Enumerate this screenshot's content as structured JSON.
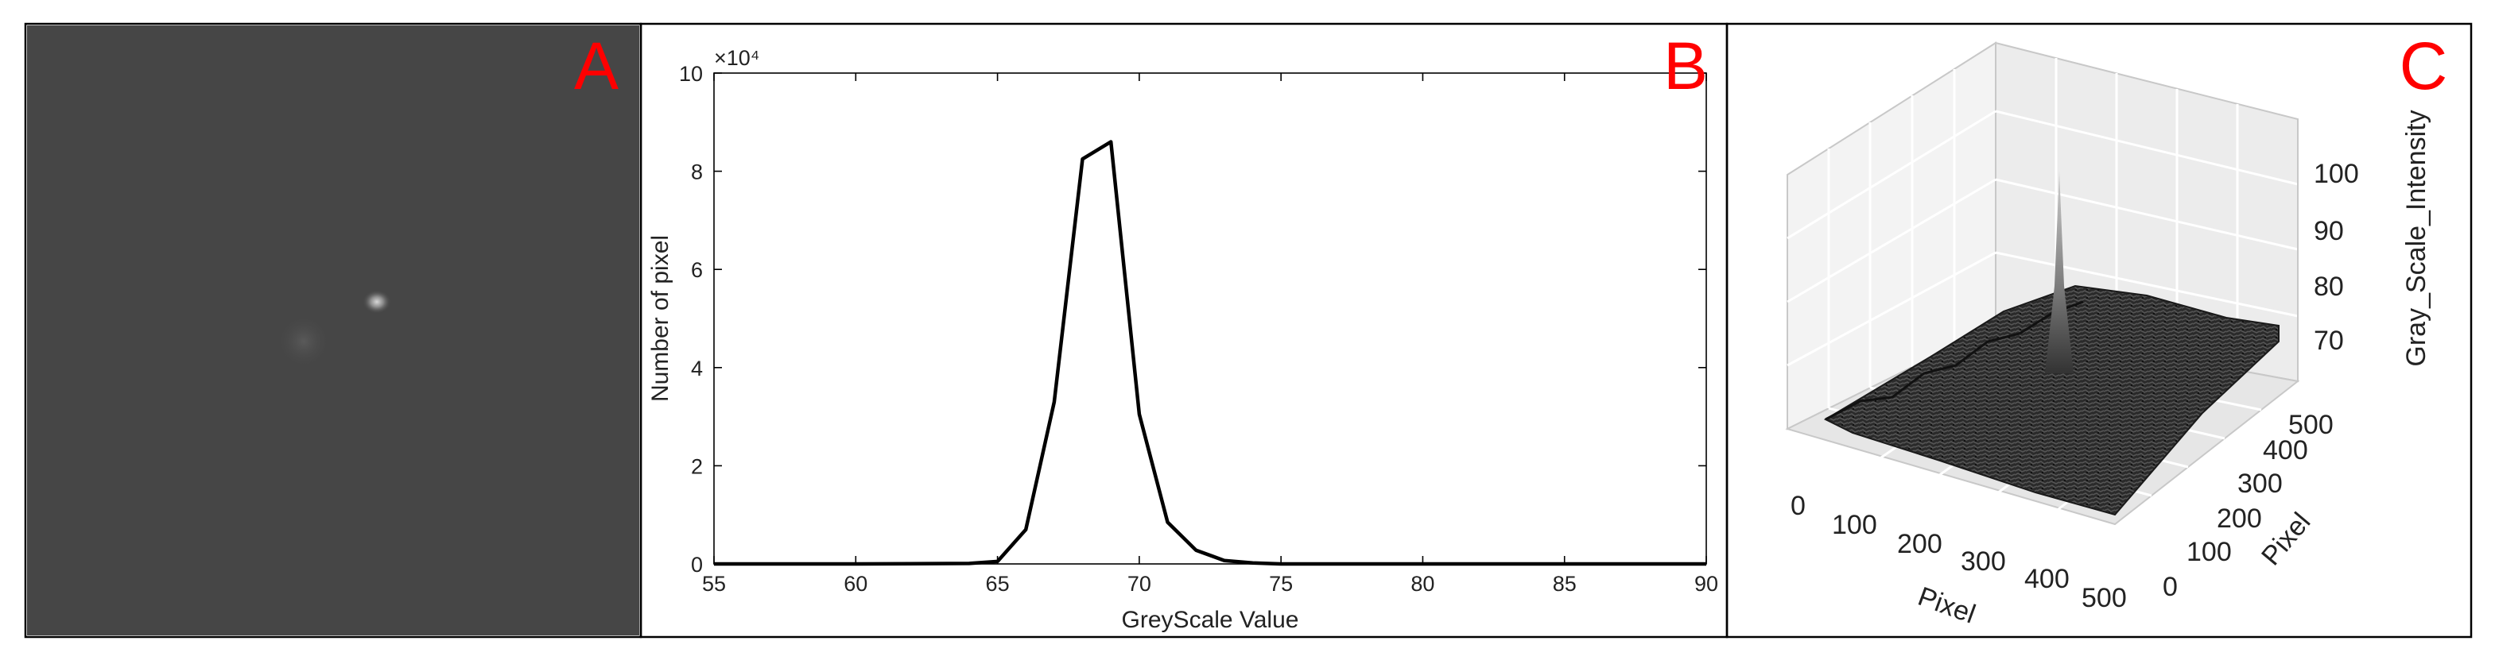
{
  "panels": {
    "a": {
      "letter": "A"
    },
    "b": {
      "letter": "B"
    },
    "c": {
      "letter": "C"
    }
  },
  "colors": {
    "letter": "#ff0000",
    "line": "#000000",
    "image_bg": "#464646"
  },
  "chart_data": [
    {
      "type": "line",
      "panel": "B",
      "xlabel": "GreyScale Value",
      "ylabel": "Number of pixel",
      "y_multiplier_label": "×10⁴",
      "xlim": [
        55,
        90
      ],
      "ylim": [
        0,
        10
      ],
      "x_ticks": [
        55,
        60,
        65,
        70,
        75,
        80,
        85,
        90
      ],
      "y_ticks": [
        0,
        2,
        4,
        6,
        8,
        10
      ],
      "x": [
        55,
        60,
        64,
        65,
        66,
        67,
        68,
        69,
        70,
        71,
        72,
        73,
        74,
        75,
        80,
        85,
        90
      ],
      "y": [
        0,
        0,
        0.01,
        0.05,
        0.7,
        3.3,
        8.25,
        8.6,
        3.05,
        0.85,
        0.28,
        0.07,
        0.02,
        0,
        0,
        0,
        0
      ],
      "grid": false
    },
    {
      "type": "surface",
      "panel": "C",
      "zlabel": "Gray_Scale_Intensity",
      "xlabel": "Pixel",
      "ylabel": "Pixel",
      "x_ticks": [
        0,
        100,
        200,
        300,
        400,
        500
      ],
      "y_ticks": [
        0,
        100,
        200,
        300,
        400,
        500
      ],
      "z_ticks": [
        70,
        80,
        90,
        100
      ],
      "grid": true
    }
  ]
}
